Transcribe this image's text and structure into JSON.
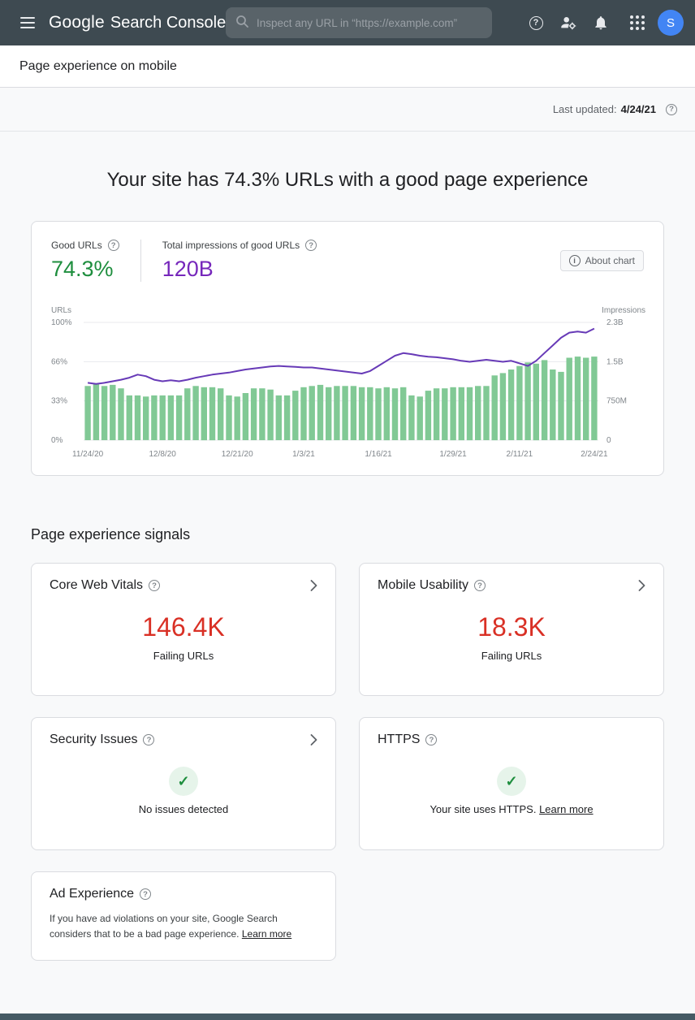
{
  "header": {
    "logo_google": "Google",
    "logo_product": "Search Console",
    "search_placeholder": "Inspect any URL in “https://example.com”",
    "avatar_letter": "S"
  },
  "icons": {
    "help": "?",
    "info": "i",
    "check": "✓"
  },
  "page": {
    "title": "Page experience on mobile",
    "last_updated_label": "Last updated:",
    "last_updated_date": "4/24/21",
    "headline": "Your site has 74.3% URLs with a good page experience"
  },
  "summary": {
    "good_urls_label": "Good URLs",
    "good_urls_value": "74.3%",
    "impressions_label": "Total impressions of good URLs",
    "impressions_value": "120B",
    "about_chart_label": "About chart"
  },
  "chart_data": {
    "type": "bar",
    "title": "Good URLs share and total impressions over time",
    "legend_position": "none",
    "grid": true,
    "y_left": {
      "label": "URLs",
      "ticks": [
        "100%",
        "66%",
        "33%",
        "0%"
      ],
      "max": 100
    },
    "y_right": {
      "label": "Impressions",
      "ticks": [
        "2.3B",
        "1.5B",
        "750M",
        "0"
      ],
      "max": 2.3
    },
    "x_ticks": [
      "11/24/20",
      "12/8/20",
      "12/21/20",
      "1/3/21",
      "1/16/21",
      "1/29/21",
      "2/11/21",
      "2/24/21"
    ],
    "x_tick_positions": [
      0,
      9,
      18,
      26,
      35,
      44,
      52,
      61
    ],
    "bar_series": {
      "name": "Good URLs (%)",
      "color": "#81c995",
      "values": [
        46,
        48,
        46,
        47,
        44,
        38,
        38,
        37,
        38,
        38,
        38,
        38,
        44,
        46,
        45,
        45,
        44,
        38,
        37,
        40,
        44,
        44,
        43,
        38,
        38,
        42,
        45,
        46,
        47,
        45,
        46,
        46,
        46,
        45,
        45,
        44,
        45,
        44,
        45,
        38,
        37,
        42,
        44,
        44,
        45,
        45,
        45,
        46,
        46,
        55,
        57,
        60,
        63,
        66,
        65,
        68,
        60,
        58,
        70,
        71,
        70,
        71
      ]
    },
    "line_series": {
      "name": "Impressions (billions)",
      "color": "#673ab7",
      "values": [
        1.12,
        1.1,
        1.12,
        1.15,
        1.18,
        1.22,
        1.28,
        1.25,
        1.18,
        1.15,
        1.17,
        1.15,
        1.18,
        1.22,
        1.25,
        1.28,
        1.3,
        1.32,
        1.35,
        1.38,
        1.4,
        1.42,
        1.44,
        1.45,
        1.44,
        1.43,
        1.42,
        1.42,
        1.4,
        1.38,
        1.36,
        1.34,
        1.32,
        1.3,
        1.35,
        1.45,
        1.55,
        1.65,
        1.7,
        1.68,
        1.65,
        1.63,
        1.62,
        1.6,
        1.58,
        1.55,
        1.53,
        1.55,
        1.57,
        1.55,
        1.53,
        1.55,
        1.5,
        1.45,
        1.55,
        1.7,
        1.85,
        2.0,
        2.1,
        2.12,
        2.1,
        2.18
      ]
    }
  },
  "signals": {
    "heading": "Page experience signals",
    "cards": [
      {
        "title": "Core Web Vitals",
        "value": "146.4K",
        "caption": "Failing URLs"
      },
      {
        "title": "Mobile Usability",
        "value": "18.3K",
        "caption": "Failing URLs"
      },
      {
        "title": "Security Issues",
        "caption": "No issues detected"
      },
      {
        "title": "HTTPS",
        "caption": "Your site uses HTTPS.",
        "link_label": "Learn more"
      },
      {
        "title": "Ad Experience",
        "body": "If you have ad violations on your site, Google Search considers that to be a bad page experience.",
        "link_label": "Learn more"
      }
    ]
  },
  "colors": {
    "header_bg": "#3e4a51",
    "accent_green": "#1e8e3e",
    "accent_purple": "#7627bb",
    "alert_red": "#d93025",
    "bar_green": "#81c995",
    "line_purple": "#673ab7",
    "avatar_blue": "#4285f4",
    "footer_bar": "#455a64"
  }
}
